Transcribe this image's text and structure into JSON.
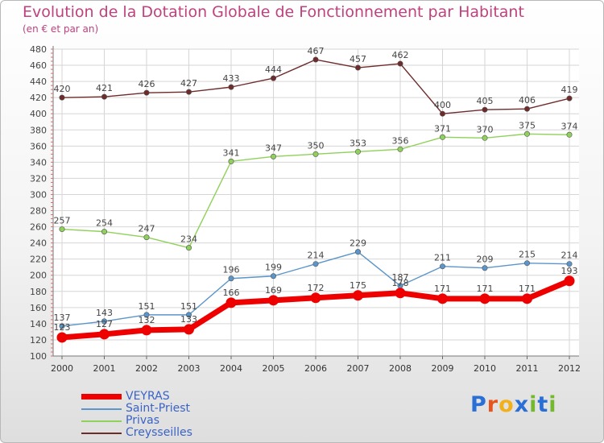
{
  "header": {
    "title": "Evolution de la Dotation Globale de Fonctionnement par Habitant",
    "subtitle": "(en € et par an)"
  },
  "logo": {
    "text": "Proxiti",
    "letter_colors": [
      "#2a6fd6",
      "#e8541d",
      "#f2b01c",
      "#2a6fd6",
      "#73b82d",
      "#2a6fd6",
      "#73b82d"
    ]
  },
  "chart_data": {
    "type": "line",
    "x": [
      "2000",
      "2001",
      "2002",
      "2003",
      "2004",
      "2005",
      "2006",
      "2007",
      "2008",
      "2009",
      "2010",
      "2011",
      "2012"
    ],
    "ylim": [
      100,
      480
    ],
    "ytick_step": 20,
    "grid": true,
    "legend_position": "bottom-left",
    "series": [
      {
        "name": "VEYRAS",
        "color": "#ee0000",
        "emphasis": true,
        "values": [
          123,
          127,
          132,
          133,
          166,
          169,
          172,
          175,
          178,
          171,
          171,
          171,
          193
        ]
      },
      {
        "name": "Saint-Priest",
        "color": "#5b95c9",
        "values": [
          137,
          143,
          151,
          151,
          196,
          199,
          214,
          229,
          187,
          211,
          209,
          215,
          214
        ]
      },
      {
        "name": "Privas",
        "color": "#8fd15a",
        "values": [
          257,
          254,
          247,
          234,
          341,
          347,
          350,
          353,
          356,
          371,
          370,
          375,
          374
        ]
      },
      {
        "name": "Creysseilles",
        "color": "#6e2b2b",
        "values": [
          420,
          421,
          426,
          427,
          433,
          444,
          467,
          457,
          462,
          400,
          405,
          406,
          419
        ]
      }
    ]
  }
}
